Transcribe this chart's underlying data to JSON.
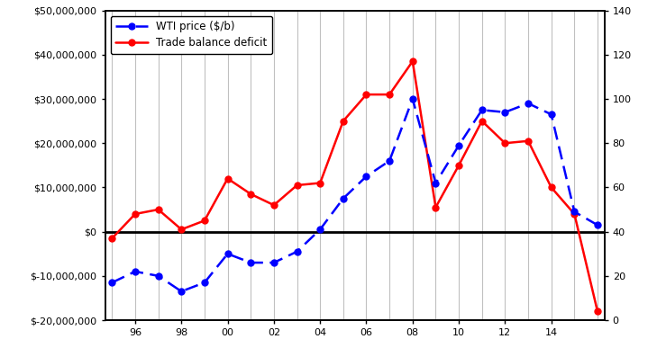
{
  "years": [
    1995,
    1996,
    1997,
    1998,
    1999,
    2000,
    2001,
    2002,
    2003,
    2004,
    2005,
    2006,
    2007,
    2008,
    2009,
    2010,
    2011,
    2012,
    2013,
    2014,
    2015,
    2016
  ],
  "trade_balance": [
    -1500000,
    4000000,
    5000000,
    500000,
    2500000,
    12000000,
    8500000,
    6000000,
    10500000,
    11000000,
    25000000,
    31000000,
    31000000,
    38500000,
    5500000,
    15000000,
    25000000,
    20000000,
    20500000,
    10000000,
    4000000,
    -18000000
  ],
  "wti_price": [
    17,
    22,
    20,
    13,
    17,
    30,
    26,
    26,
    31,
    41,
    55,
    65,
    72,
    100,
    62,
    79,
    95,
    94,
    98,
    93,
    49,
    43
  ],
  "trade_color": "#FF0000",
  "wti_color": "#0000FF",
  "left_ylim": [
    -20000000,
    50000000
  ],
  "right_ylim": [
    0,
    140
  ],
  "left_yticks": [
    -20000000,
    -10000000,
    0,
    10000000,
    20000000,
    30000000,
    40000000,
    50000000
  ],
  "right_yticks": [
    0,
    20,
    40,
    60,
    80,
    100,
    120,
    140
  ],
  "legend_wti": "WTI price ($/b)",
  "legend_trade": "Trade balance deficit",
  "bg_color": "#FFFFFF",
  "grid_color": "#C0C0C0",
  "xtick_labels": [
    "96",
    "98",
    "00",
    "02",
    "04",
    "06",
    "08",
    "10",
    "12",
    "14"
  ],
  "xtick_positions": [
    1996,
    1998,
    2000,
    2002,
    2004,
    2006,
    2008,
    2010,
    2012,
    2014
  ],
  "xlim": [
    1994.7,
    2016.3
  ],
  "grid_years": [
    1995,
    1996,
    1997,
    1998,
    1999,
    2000,
    2001,
    2002,
    2003,
    2004,
    2005,
    2006,
    2007,
    2008,
    2009,
    2010,
    2011,
    2012,
    2013,
    2014,
    2015,
    2016
  ]
}
